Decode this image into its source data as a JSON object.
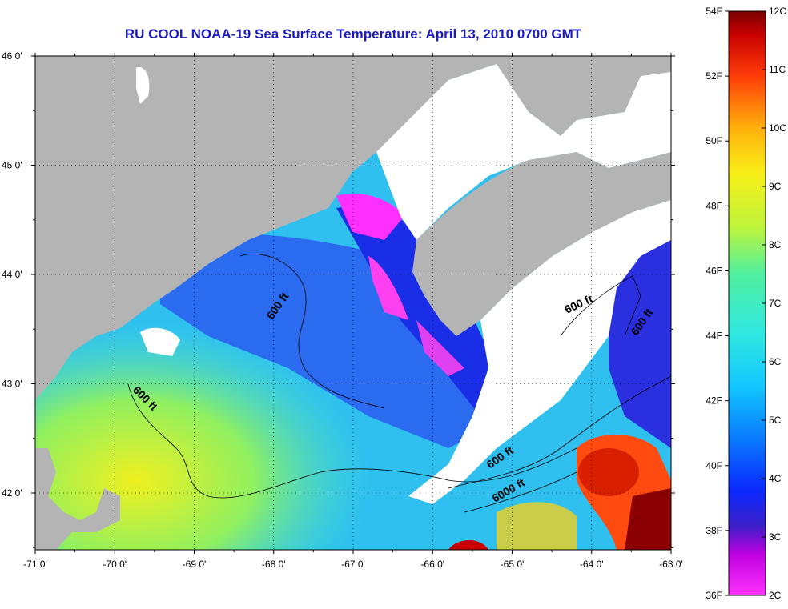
{
  "title": "RU COOL  NOAA-19  Sea Surface Temperature:  April 13, 2010 0700 GMT",
  "map": {
    "lon_labels": [
      "-71 0'",
      "-70 0'",
      "-69 0'",
      "-68 0'",
      "-67 0'",
      "-66 0'",
      "-65 0'",
      "-64 0'",
      "-63 0'"
    ],
    "lat_labels": [
      "46 0'",
      "45 0'",
      "44 0'",
      "43 0'",
      "42 0'"
    ],
    "contour_labels": [
      {
        "text": "600 ft",
        "rotation": -55
      },
      {
        "text": "600 ft",
        "rotation": 45
      },
      {
        "text": "600 ft",
        "rotation": -25
      },
      {
        "text": "600 ft",
        "rotation": -35
      },
      {
        "text": "6000 ft",
        "rotation": -30
      },
      {
        "text": "600 ft",
        "rotation": -55
      }
    ],
    "colors": {
      "land": "#b4b4b4",
      "cloud": "#ffffff",
      "water_base": "#3ad0e8"
    }
  },
  "colorbar": {
    "f_labels": [
      "54F",
      "52F",
      "50F",
      "48F",
      "46F",
      "44F",
      "42F",
      "40F",
      "38F",
      "36F"
    ],
    "c_labels": [
      "12C",
      "11C",
      "10C",
      "9C",
      "8C",
      "7C",
      "6C",
      "5C",
      "4C",
      "3C",
      "2C"
    ]
  }
}
